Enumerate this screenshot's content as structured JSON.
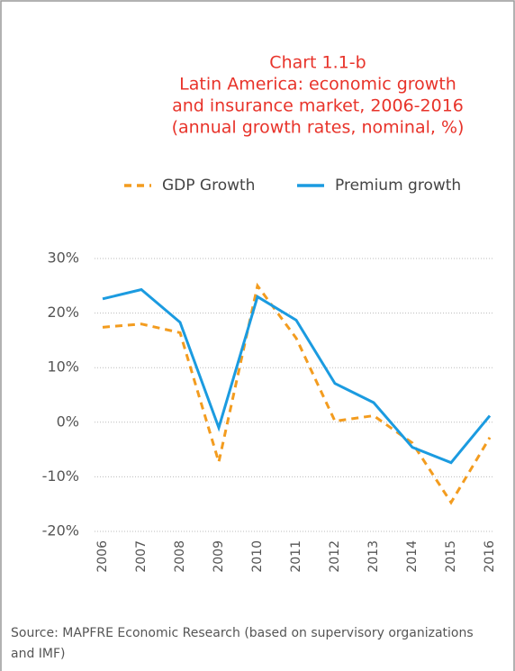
{
  "chart_data": {
    "type": "line",
    "title": [
      "Chart 1.1-b",
      "Latin America: economic growth",
      "and insurance market, 2006-2016",
      "(annual growth rates, nominal, %)"
    ],
    "categories": [
      "2006",
      "2007",
      "2008",
      "2009",
      "2010",
      "2011",
      "2012",
      "2013",
      "2014",
      "2015",
      "2016"
    ],
    "series": [
      {
        "name": "GDP Growth",
        "color": "#f39c1f",
        "dashed": true,
        "values": [
          17.4,
          18,
          16.4,
          -7.3,
          25,
          15.4,
          0.2,
          1.2,
          -3.8,
          -14.7,
          -2.8
        ]
      },
      {
        "name": "Premium growth",
        "color": "#1b9be0",
        "dashed": false,
        "values": [
          22.6,
          24.3,
          18.3,
          -1,
          23,
          18.7,
          7.1,
          3.6,
          -4.6,
          -7.4,
          1.2
        ]
      }
    ],
    "ylim": [
      -20,
      30
    ],
    "yticks": [
      {
        "value": -20,
        "label": "-20%"
      },
      {
        "value": -10,
        "label": "-10%"
      },
      {
        "value": 0,
        "label": "0%"
      },
      {
        "value": 10,
        "label": "10%"
      },
      {
        "value": 20,
        "label": "20%"
      },
      {
        "value": 30,
        "label": "30%"
      }
    ],
    "grid": true,
    "legend": "top",
    "source": "Source: MAPFRE Economic Research (based on supervisory organizations and IMF)"
  }
}
